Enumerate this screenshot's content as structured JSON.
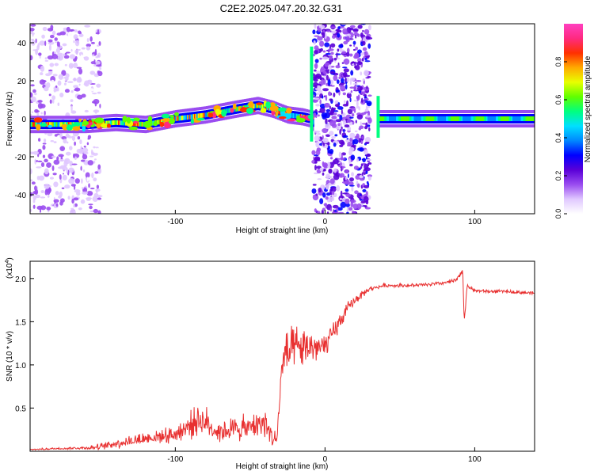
{
  "title": "C2E2.2025.047.20.32.G31",
  "chart_data": [
    {
      "type": "heatmap",
      "name": "spectrogram",
      "xlabel": "Height of straight line (km)",
      "ylabel": "Frequency (Hz)",
      "xlim": [
        -197,
        140
      ],
      "ylim": [
        -50,
        50
      ],
      "xticks": [
        -100,
        0,
        100
      ],
      "xtick_labels": [
        "-100",
        "0",
        "100"
      ],
      "yticks": [
        -40,
        -20,
        0,
        20,
        40
      ],
      "ytick_labels": [
        "-40",
        "-20",
        "0",
        "20",
        "40"
      ],
      "colorbar": {
        "label": "Normalized spectral amplitude",
        "range": [
          0,
          1
        ],
        "ticks": [
          0.0,
          0.2,
          0.4,
          0.6,
          0.8
        ],
        "tick_labels": [
          "0.0",
          "0.2",
          "0.4",
          "0.6",
          "0.8"
        ],
        "colors": [
          "#ffffff",
          "#e0c8ff",
          "#9a4cf0",
          "#5a00d8",
          "#0000ff",
          "#0088ff",
          "#00e0ff",
          "#00ff80",
          "#60ff00",
          "#e8ff00",
          "#ffaa00",
          "#ff3000",
          "#ff2a80",
          "#ff40c0"
        ]
      },
      "ridge": {
        "x": [
          -197,
          -160,
          -140,
          -120,
          -100,
          -80,
          -60,
          -45,
          -35,
          -25,
          -15,
          -10,
          -8,
          35,
          40,
          60,
          80,
          100,
          120,
          140
        ],
        "freq": [
          -3,
          -3,
          -2,
          -3,
          0,
          2,
          5,
          7,
          5,
          2,
          1,
          0,
          -2,
          0,
          0,
          0,
          0,
          0,
          0,
          0
        ]
      },
      "noise_regions": [
        {
          "x": [
            -197,
            -150
          ],
          "density": "medium"
        },
        {
          "x": [
            -8,
            30
          ],
          "density": "high"
        }
      ]
    },
    {
      "type": "line",
      "name": "snr",
      "xlabel": "Height of straight line (km)",
      "ylabel": "SNR (10 * v/v)",
      "y_multiplier_label": "(x10",
      "y_multiplier_exp": "4",
      "y_multiplier_close": ")",
      "xlim": [
        -197,
        140
      ],
      "ylim": [
        0,
        22000
      ],
      "xticks": [
        -100,
        0,
        100
      ],
      "xtick_labels": [
        "-100",
        "0",
        "100"
      ],
      "yticks": [
        5000,
        10000,
        15000,
        20000
      ],
      "ytick_labels": [
        "0.5",
        "1.0",
        "1.5",
        "2.0"
      ],
      "color": "#e83030",
      "x": [
        -197,
        -180,
        -160,
        -150,
        -140,
        -130,
        -120,
        -110,
        -100,
        -90,
        -85,
        -80,
        -75,
        -70,
        -60,
        -50,
        -45,
        -40,
        -35,
        -32,
        -30,
        -28,
        -25,
        -20,
        -15,
        -10,
        -5,
        0,
        5,
        10,
        15,
        20,
        25,
        30,
        40,
        50,
        60,
        70,
        80,
        88,
        92,
        93,
        95,
        100,
        110,
        120,
        130,
        140
      ],
      "y": [
        200,
        300,
        400,
        500,
        900,
        1200,
        1500,
        1700,
        2000,
        3000,
        3700,
        3500,
        2600,
        2300,
        2600,
        2700,
        3200,
        3300,
        1500,
        1400,
        7000,
        11000,
        11200,
        12000,
        11800,
        12200,
        12000,
        12000,
        13500,
        15000,
        16500,
        17500,
        18200,
        18800,
        19200,
        19200,
        19200,
        19300,
        19500,
        19800,
        21000,
        15000,
        19200,
        18600,
        18500,
        18500,
        18400,
        18300
      ],
      "noise_amplitude": [
        100,
        120,
        200,
        400,
        600,
        700,
        800,
        900,
        1200,
        1600,
        1800,
        1800,
        1500,
        1400,
        1500,
        1600,
        1700,
        1800,
        1200,
        1000,
        3000,
        3000,
        2800,
        2500,
        2200,
        2000,
        1800,
        1600,
        1400,
        1000,
        800,
        600,
        400,
        300,
        250,
        250,
        250,
        250,
        250,
        300,
        300,
        300,
        250,
        200,
        200,
        200,
        200,
        200
      ]
    }
  ]
}
